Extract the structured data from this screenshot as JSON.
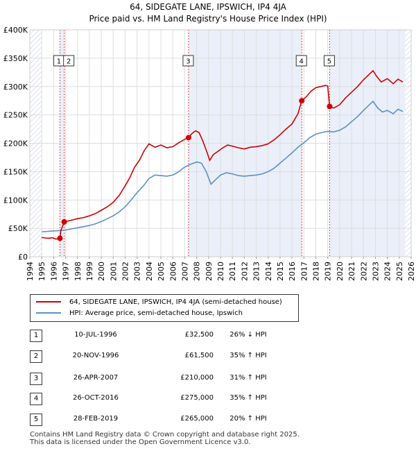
{
  "title_line1": "64, SIDEGATE LANE, IPSWICH, IP4 4JA",
  "title_line2": "Price paid vs. HM Land Registry's House Price Index (HPI)",
  "chart_data": {
    "type": "line",
    "x_range": [
      1994,
      2026
    ],
    "y_range": [
      0,
      400000
    ],
    "y_ticks": [
      {
        "value": 0,
        "label": "£0"
      },
      {
        "value": 50000,
        "label": "£50K"
      },
      {
        "value": 100000,
        "label": "£100K"
      },
      {
        "value": 150000,
        "label": "£150K"
      },
      {
        "value": 200000,
        "label": "£200K"
      },
      {
        "value": 250000,
        "label": "£250K"
      },
      {
        "value": 300000,
        "label": "£300K"
      },
      {
        "value": 350000,
        "label": "£350K"
      },
      {
        "value": 400000,
        "label": "£400K"
      }
    ],
    "x_ticks": [
      "1994",
      "1995",
      "1996",
      "1997",
      "1998",
      "1999",
      "2000",
      "2001",
      "2002",
      "2003",
      "2004",
      "2005",
      "2006",
      "2007",
      "2008",
      "2009",
      "2010",
      "2011",
      "2012",
      "2013",
      "2014",
      "2015",
      "2016",
      "2017",
      "2018",
      "2019",
      "2020",
      "2021",
      "2022",
      "2023",
      "2024",
      "2025",
      "2026"
    ],
    "grid": true,
    "shaded_spans": [
      [
        1996.53,
        1996.89
      ],
      [
        2007.32,
        2016.82
      ],
      [
        2019.16,
        2025.5
      ]
    ],
    "hatched_spans": [
      [
        1994,
        1995
      ],
      [
        2025.5,
        2026
      ]
    ],
    "series": [
      {
        "name": "64, SIDEGATE LANE, IPSWICH, IP4 4JA (semi-detached house)",
        "color": "#cc0000",
        "points": [
          [
            1995.0,
            34000
          ],
          [
            1995.3,
            33000
          ],
          [
            1995.6,
            32500
          ],
          [
            1995.9,
            33500
          ],
          [
            1996.2,
            31000
          ],
          [
            1996.53,
            32500
          ],
          [
            1996.6,
            46000
          ],
          [
            1996.89,
            61500
          ],
          [
            1997.2,
            63000
          ],
          [
            1997.6,
            65000
          ],
          [
            1998.0,
            67000
          ],
          [
            1998.5,
            69000
          ],
          [
            1999.0,
            72000
          ],
          [
            1999.5,
            76000
          ],
          [
            2000.0,
            82000
          ],
          [
            2000.5,
            88000
          ],
          [
            2001.0,
            96000
          ],
          [
            2001.5,
            108000
          ],
          [
            2002.0,
            125000
          ],
          [
            2002.4,
            140000
          ],
          [
            2002.8,
            158000
          ],
          [
            2003.2,
            170000
          ],
          [
            2003.6,
            187000
          ],
          [
            2004.0,
            199000
          ],
          [
            2004.5,
            193000
          ],
          [
            2005.0,
            197000
          ],
          [
            2005.5,
            192000
          ],
          [
            2006.0,
            194000
          ],
          [
            2006.5,
            201000
          ],
          [
            2007.0,
            207000
          ],
          [
            2007.32,
            210000
          ],
          [
            2007.6,
            217000
          ],
          [
            2007.9,
            222000
          ],
          [
            2008.2,
            219000
          ],
          [
            2008.5,
            205000
          ],
          [
            2008.8,
            188000
          ],
          [
            2009.1,
            170000
          ],
          [
            2009.4,
            180000
          ],
          [
            2009.8,
            186000
          ],
          [
            2010.2,
            192000
          ],
          [
            2010.6,
            197000
          ],
          [
            2011.0,
            195000
          ],
          [
            2011.5,
            192000
          ],
          [
            2012.0,
            190000
          ],
          [
            2012.5,
            193000
          ],
          [
            2013.0,
            194000
          ],
          [
            2013.5,
            196000
          ],
          [
            2014.0,
            199000
          ],
          [
            2014.5,
            206000
          ],
          [
            2015.0,
            215000
          ],
          [
            2015.5,
            225000
          ],
          [
            2016.0,
            234000
          ],
          [
            2016.5,
            252000
          ],
          [
            2016.82,
            275000
          ],
          [
            2017.2,
            282000
          ],
          [
            2017.6,
            292000
          ],
          [
            2018.0,
            298000
          ],
          [
            2018.4,
            300000
          ],
          [
            2018.8,
            302000
          ],
          [
            2019.0,
            301000
          ],
          [
            2019.16,
            265000
          ],
          [
            2019.5,
            262000
          ],
          [
            2020.0,
            268000
          ],
          [
            2020.5,
            280000
          ],
          [
            2021.0,
            290000
          ],
          [
            2021.5,
            300000
          ],
          [
            2022.0,
            312000
          ],
          [
            2022.5,
            322000
          ],
          [
            2022.8,
            328000
          ],
          [
            2023.1,
            318000
          ],
          [
            2023.5,
            308000
          ],
          [
            2024.0,
            314000
          ],
          [
            2024.5,
            305000
          ],
          [
            2024.9,
            313000
          ],
          [
            2025.3,
            308000
          ]
        ],
        "sales": [
          {
            "label": "1",
            "x": 1996.53,
            "y": 32500
          },
          {
            "label": "2",
            "x": 1996.89,
            "y": 61500
          },
          {
            "label": "3",
            "x": 2007.32,
            "y": 210000
          },
          {
            "label": "4",
            "x": 2016.82,
            "y": 275000
          },
          {
            "label": "5",
            "x": 2019.16,
            "y": 265000
          }
        ]
      },
      {
        "name": "HPI: Average price, semi-detached house, Ipswich",
        "color": "#5b8fc7",
        "points": [
          [
            1995.0,
            44000
          ],
          [
            1995.5,
            44500
          ],
          [
            1996.0,
            45500
          ],
          [
            1996.5,
            46000
          ],
          [
            1997.0,
            47000
          ],
          [
            1997.5,
            49000
          ],
          [
            1998.0,
            51000
          ],
          [
            1998.5,
            53000
          ],
          [
            1999.0,
            55000
          ],
          [
            1999.5,
            58000
          ],
          [
            2000.0,
            62000
          ],
          [
            2000.5,
            67000
          ],
          [
            2001.0,
            72000
          ],
          [
            2001.5,
            79000
          ],
          [
            2002.0,
            88000
          ],
          [
            2002.5,
            100000
          ],
          [
            2003.0,
            113000
          ],
          [
            2003.5,
            124000
          ],
          [
            2004.0,
            138000
          ],
          [
            2004.5,
            144000
          ],
          [
            2005.0,
            143000
          ],
          [
            2005.5,
            142000
          ],
          [
            2006.0,
            144000
          ],
          [
            2006.5,
            150000
          ],
          [
            2007.0,
            158000
          ],
          [
            2007.5,
            163000
          ],
          [
            2008.0,
            167000
          ],
          [
            2008.4,
            165000
          ],
          [
            2008.8,
            150000
          ],
          [
            2009.2,
            128000
          ],
          [
            2009.6,
            136000
          ],
          [
            2010.0,
            144000
          ],
          [
            2010.5,
            148000
          ],
          [
            2011.0,
            146000
          ],
          [
            2011.5,
            143000
          ],
          [
            2012.0,
            142000
          ],
          [
            2012.5,
            143000
          ],
          [
            2013.0,
            144000
          ],
          [
            2013.5,
            146000
          ],
          [
            2014.0,
            150000
          ],
          [
            2014.5,
            156000
          ],
          [
            2015.0,
            165000
          ],
          [
            2015.5,
            174000
          ],
          [
            2016.0,
            183000
          ],
          [
            2016.5,
            193000
          ],
          [
            2017.0,
            201000
          ],
          [
            2017.5,
            210000
          ],
          [
            2018.0,
            216000
          ],
          [
            2018.5,
            219000
          ],
          [
            2019.0,
            221000
          ],
          [
            2019.5,
            220000
          ],
          [
            2020.0,
            223000
          ],
          [
            2020.5,
            229000
          ],
          [
            2021.0,
            238000
          ],
          [
            2021.5,
            247000
          ],
          [
            2022.0,
            258000
          ],
          [
            2022.5,
            268000
          ],
          [
            2022.8,
            274000
          ],
          [
            2023.2,
            262000
          ],
          [
            2023.6,
            255000
          ],
          [
            2024.0,
            258000
          ],
          [
            2024.5,
            252000
          ],
          [
            2024.9,
            260000
          ],
          [
            2025.3,
            256000
          ]
        ]
      }
    ]
  },
  "legend": {
    "property_label": "64, SIDEGATE LANE, IPSWICH, IP4 4JA (semi-detached house)",
    "hpi_label": "HPI: Average price, semi-detached house, Ipswich",
    "property_color": "#cc0000",
    "hpi_color": "#5b8fc7"
  },
  "transactions": [
    {
      "num": "1",
      "date": "10-JUL-1996",
      "price": "£32,500",
      "hpi": "26% ↓ HPI"
    },
    {
      "num": "2",
      "date": "20-NOV-1996",
      "price": "£61,500",
      "hpi": "35% ↑ HPI"
    },
    {
      "num": "3",
      "date": "26-APR-2007",
      "price": "£210,000",
      "hpi": "31% ↑ HPI"
    },
    {
      "num": "4",
      "date": "26-OCT-2016",
      "price": "£275,000",
      "hpi": "35% ↑ HPI"
    },
    {
      "num": "5",
      "date": "28-FEB-2019",
      "price": "£265,000",
      "hpi": "20% ↑ HPI"
    }
  ],
  "footer_line1": "Contains HM Land Registry data © Crown copyright and database right 2025.",
  "footer_line2": "This data is licensed under the Open Government Licence v3.0."
}
